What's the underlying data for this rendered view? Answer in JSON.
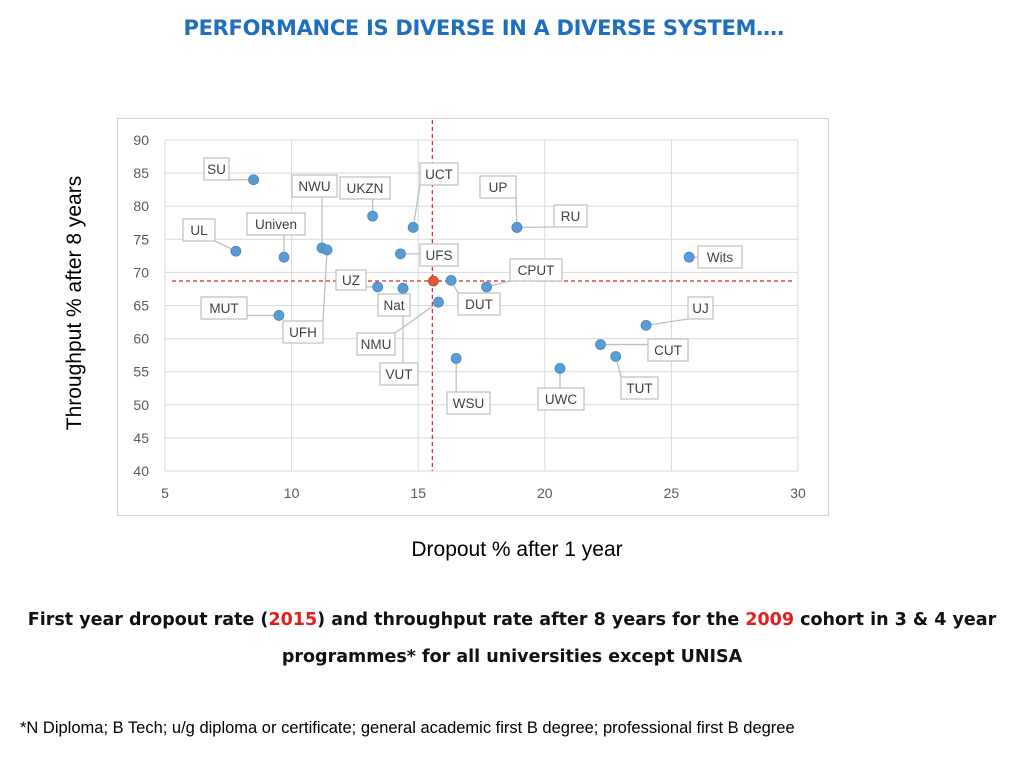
{
  "title": "PERFORMANCE IS DIVERSE IN A DIVERSE SYSTEM….",
  "caption": {
    "part1": "First year dropout rate (",
    "year1": "2015",
    "part2": ") and throughput rate after 8 years for the ",
    "year2": "2009",
    "part3": " cohort in 3 & 4 year programmes*  for all universities except UNISA"
  },
  "footnote": "*N Diploma; B Tech; u/g diploma or certificate; general academic first B degree; professional first B degree",
  "colors": {
    "title": "#1f6fbf",
    "point": "#5b9bd5",
    "average_point": "#e05a3a",
    "reference_line": "#d62728",
    "highlight": "#e0201b"
  },
  "chart_data": {
    "type": "scatter",
    "title": "",
    "xlabel": "Dropout % after 1 year",
    "ylabel": "Throughput  % after 8 years",
    "xlim": [
      5,
      30
    ],
    "ylim": [
      40,
      90
    ],
    "x_ticks": [
      5,
      10,
      15,
      20,
      25,
      30
    ],
    "y_ticks": [
      40,
      45,
      50,
      55,
      60,
      65,
      70,
      75,
      80,
      85,
      90
    ],
    "grid": true,
    "reference_lines": {
      "x": 15.4,
      "y": 68.7
    },
    "average_point": {
      "x": 15.6,
      "y": 68.7
    },
    "points": [
      {
        "label": "SU",
        "x": 8.5,
        "y": 84
      },
      {
        "label": "NWU",
        "x": 11.2,
        "y": 73.7
      },
      {
        "label": "UKZN",
        "x": 13.2,
        "y": 78.5
      },
      {
        "label": "UCT",
        "x": 14.8,
        "y": 76.8
      },
      {
        "label": "UP",
        "x": 18.9,
        "y": 76.8
      },
      {
        "label": "RU",
        "x": 18.9,
        "y": 76.8
      },
      {
        "label": "UL",
        "x": 7.8,
        "y": 73.2
      },
      {
        "label": "Univen",
        "x": 9.7,
        "y": 72.3
      },
      {
        "label": "Wits",
        "x": 25.7,
        "y": 72.3
      },
      {
        "label": "UFS",
        "x": 14.3,
        "y": 72.8
      },
      {
        "label": "UZ",
        "x": 13.4,
        "y": 67.8
      },
      {
        "label": "CPUT",
        "x": 17.7,
        "y": 67.8
      },
      {
        "label": "Nat",
        "x": 14.4,
        "y": 67.6
      },
      {
        "label": "DUT",
        "x": 16.3,
        "y": 68.8
      },
      {
        "label": "MUT",
        "x": 9.5,
        "y": 63.5
      },
      {
        "label": "UFH",
        "x": 11.4,
        "y": 73.4
      },
      {
        "label": "NMU",
        "x": 15.8,
        "y": 65.5
      },
      {
        "label": "UJ",
        "x": 24.0,
        "y": 62.0
      },
      {
        "label": "CUT",
        "x": 22.2,
        "y": 59.1
      },
      {
        "label": "VUT",
        "x": 14.4,
        "y": 67.6
      },
      {
        "label": "TUT",
        "x": 22.8,
        "y": 57.3
      },
      {
        "label": "WSU",
        "x": 16.5,
        "y": 57.0
      },
      {
        "label": "UWC",
        "x": 20.6,
        "y": 55.5
      }
    ]
  }
}
